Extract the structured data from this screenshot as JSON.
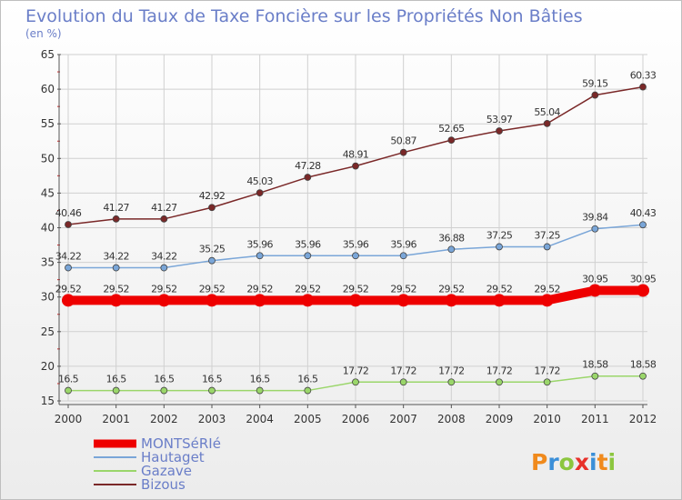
{
  "chart_data": {
    "type": "line",
    "title": "Evolution du Taux de Taxe Foncière sur les Propriétés Non Bâties",
    "subtitle": "(en %)",
    "x": [
      "2000",
      "2001",
      "2002",
      "2003",
      "2004",
      "2005",
      "2006",
      "2007",
      "2008",
      "2009",
      "2010",
      "2011",
      "2012"
    ],
    "ylim": [
      15,
      65
    ],
    "yticks": [
      15,
      20,
      25,
      30,
      35,
      40,
      45,
      50,
      55,
      60,
      65
    ],
    "grid": true,
    "legend_position": "bottom-left",
    "series": [
      {
        "name": "MONTSéRIé",
        "color": "#ee0000",
        "labels": [
          "29.52",
          "29.52",
          "29.52",
          "29.52",
          "29.52",
          "29.52",
          "29.52",
          "29.52",
          "29.52",
          "29.52",
          "29.52",
          "30.95",
          "30.95"
        ],
        "values": [
          29.52,
          29.52,
          29.52,
          29.52,
          29.52,
          29.52,
          29.52,
          29.52,
          29.52,
          29.52,
          29.52,
          30.95,
          30.95
        ]
      },
      {
        "name": "Hautaget",
        "color": "#7aa6d8",
        "labels": [
          "34.22",
          "34.22",
          "34.22",
          "35.25",
          "35.96",
          "35.96",
          "35.96",
          "35.96",
          "36.88",
          "37.25",
          "37.25",
          "39.84",
          "40.43"
        ],
        "values": [
          34.22,
          34.22,
          34.22,
          35.25,
          35.96,
          35.96,
          35.96,
          35.96,
          36.88,
          37.25,
          37.25,
          39.84,
          40.43
        ]
      },
      {
        "name": "Gazave",
        "color": "#9ad66a",
        "labels": [
          "16.5",
          "16.5",
          "16.5",
          "16.5",
          "16.5",
          "16.5",
          "17.72",
          "17.72",
          "17.72",
          "17.72",
          "17.72",
          "18.58",
          "18.58"
        ],
        "values": [
          16.5,
          16.5,
          16.5,
          16.5,
          16.5,
          16.5,
          17.72,
          17.72,
          17.72,
          17.72,
          17.72,
          18.58,
          18.58
        ]
      },
      {
        "name": "Bizous",
        "color": "#7a2828",
        "labels": [
          "40.46",
          "41.27",
          "41.27",
          "42.92",
          "45.03",
          "47.28",
          "48.91",
          "50.87",
          "52.65",
          "53.97",
          "55.04",
          "59.15",
          "60.33"
        ],
        "values": [
          40.46,
          41.27,
          41.27,
          42.92,
          45.03,
          47.28,
          48.91,
          50.87,
          52.65,
          53.97,
          55.04,
          59.15,
          60.33
        ]
      }
    ]
  },
  "logo": {
    "text": "Proxiti",
    "colors": [
      "#f08a1c",
      "#3a8fd8",
      "#8cc63f",
      "#e8312a"
    ]
  }
}
